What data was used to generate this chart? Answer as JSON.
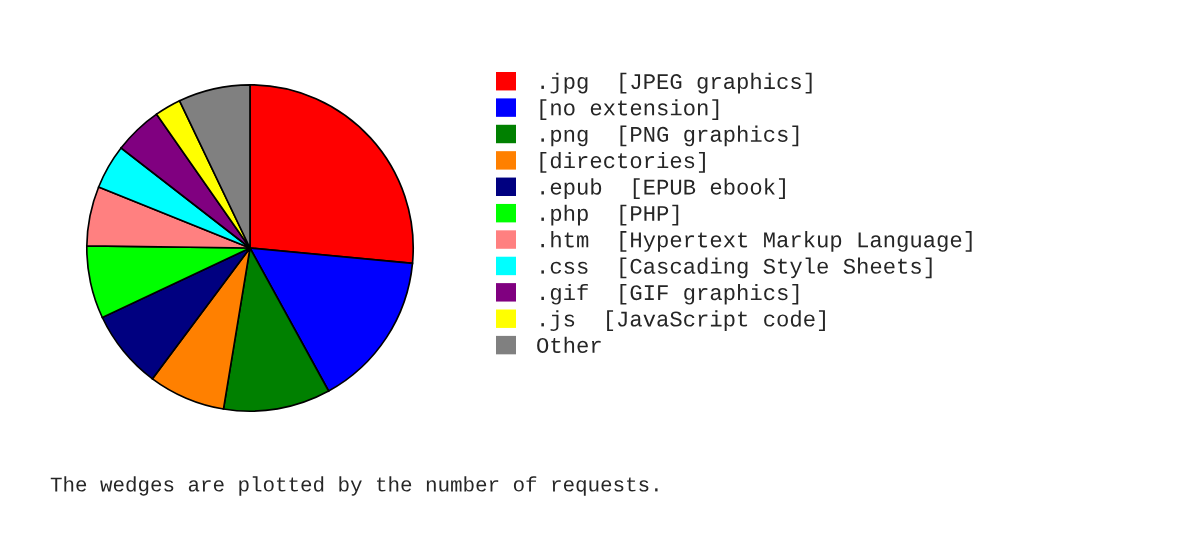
{
  "chart_data": {
    "type": "pie",
    "categories": [
      ".jpg  [JPEG graphics]",
      "[no extension]",
      ".png  [PNG graphics]",
      "[directories]",
      ".epub  [EPUB ebook]",
      ".php  [PHP]",
      ".htm  [Hypertext Markup Language]",
      ".css  [Cascading Style Sheets]",
      ".gif  [GIF graphics]",
      ".js  [JavaScript code]",
      "Other"
    ],
    "values": [
      26.5,
      15.5,
      10.6,
      7.6,
      7.8,
      7.2,
      5.9,
      4.4,
      4.8,
      2.6,
      7.1
    ],
    "colors": [
      "#ff0000",
      "#0000ff",
      "#008000",
      "#ff8000",
      "#000080",
      "#00ff00",
      "#ff8080",
      "#00ffff",
      "#800080",
      "#ffff00",
      "#808080"
    ],
    "legend": "right",
    "annotations": [
      "The wedges are plotted by the number of requests."
    ]
  }
}
